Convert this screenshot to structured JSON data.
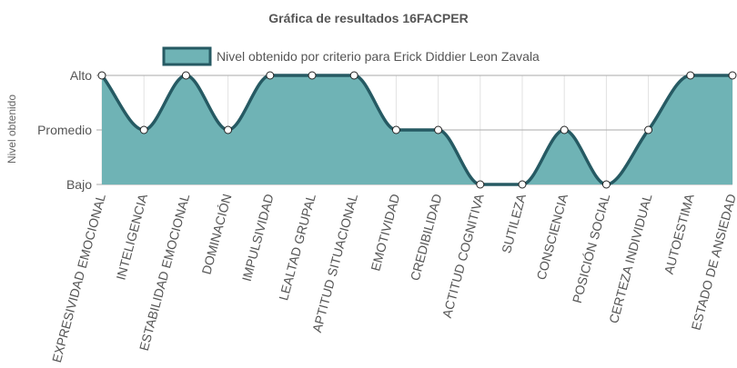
{
  "chart_data": {
    "type": "area",
    "title": "Gráfica de resultados 16FACPER",
    "ylabel": "Nivel obtenido",
    "xlabel": "",
    "y_levels": [
      "Bajo",
      "Promedio",
      "Alto"
    ],
    "ylim": [
      1,
      3
    ],
    "grid": true,
    "legend_position": "top",
    "categories": [
      "EXPRESIVIDAD EMOCIONAL",
      "INTELIGENCIA",
      "ESTABILIDAD EMOCIONAL",
      "DOMINACIÓN",
      "IMPULSIVIDAD",
      "LEALTAD GRUPAL",
      "APTITUD SITUACIONAL",
      "EMOTIVIDAD",
      "CREDIBILIDAD",
      "ACTITUD COGNITIVA",
      "SUTILEZA",
      "CONSCIENCIA",
      "POSICIÓN SOCIAL",
      "CERTEZA INDIVIDUAL",
      "AUTOESTIMA",
      "ESTADO DE ANSIEDAD"
    ],
    "series": [
      {
        "name": "Nivel obtenido por criterio para Erick Diddier Leon Zavala",
        "values": [
          3,
          2,
          3,
          2,
          3,
          3,
          3,
          2,
          2,
          1,
          1,
          2,
          1,
          2,
          3,
          3
        ],
        "fill_color": "#6fb3b5",
        "line_color": "#265a63"
      }
    ]
  }
}
